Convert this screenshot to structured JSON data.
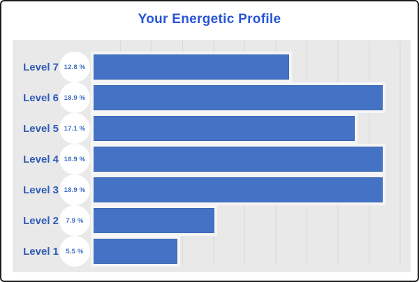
{
  "theme": {
    "title_color": "#2754d6",
    "panel_bg": "#e9e9e9",
    "grid_color": "#d8d8d8",
    "label_color": "#2d5bb5",
    "badge_bg": "#ffffff",
    "badge_text": "#3e6dc3",
    "bar_color": "#4472c4",
    "bar_edge": "#3c68b2",
    "bar_halo": "#f5f5f5"
  },
  "chart_data": {
    "type": "bar",
    "orientation": "horizontal",
    "title": "Your Energetic Profile",
    "categories": [
      "Level 7",
      "Level 6",
      "Level 5",
      "Level 4",
      "Level 3",
      "Level 2",
      "Level 1"
    ],
    "values": [
      12.8,
      18.9,
      17.1,
      18.9,
      18.9,
      7.9,
      5.5
    ],
    "value_labels": [
      "12.8 %",
      "18.9 %",
      "17.1 %",
      "18.9 %",
      "18.9 %",
      "7.9 %",
      "5.5 %"
    ],
    "xlim": [
      0,
      20.75
    ],
    "grid": "vertical",
    "legend": "none"
  }
}
